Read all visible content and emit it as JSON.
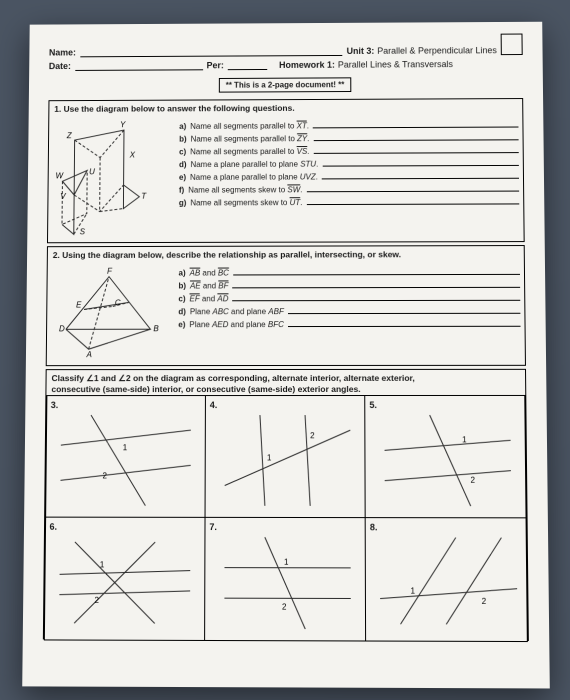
{
  "header": {
    "name_label": "Name:",
    "date_label": "Date:",
    "per_label": "Per:",
    "unit_label": "Unit 3:",
    "unit_title": "Parallel & Perpendicular Lines",
    "hw_label": "Homework 1:",
    "hw_title": "Parallel Lines & Transversals",
    "notice": "** This is a 2-page document! **"
  },
  "q1": {
    "head": "1. Use the diagram below to answer the following questions.",
    "items": [
      {
        "l": "a)",
        "t1": "Name all segments parallel to ",
        "seg": "XT",
        "t2": "."
      },
      {
        "l": "b)",
        "t1": "Name all segments parallel to ",
        "seg": "ZY",
        "t2": "."
      },
      {
        "l": "c)",
        "t1": "Name all segments parallel to ",
        "seg": "VS",
        "t2": "."
      },
      {
        "l": "d)",
        "t1": "Name a plane parallel to plane ",
        "seg": "",
        "plain": "STU",
        "t2": "."
      },
      {
        "l": "e)",
        "t1": "Name a plane parallel to plane ",
        "seg": "",
        "plain": "UVZ",
        "t2": "."
      },
      {
        "l": "f)",
        "t1": "Name all segments skew to ",
        "seg": "SW",
        "t2": "."
      },
      {
        "l": "g)",
        "t1": "Name all segments skew to ",
        "seg": "UT",
        "t2": "."
      }
    ],
    "labels": {
      "Y": "Y",
      "Z": "Z",
      "X": "X",
      "W": "W",
      "U": "U",
      "V": "V",
      "T": "T",
      "S": "S"
    }
  },
  "q2": {
    "head": "2. Using the diagram below, describe the relationship as parallel, intersecting, or skew.",
    "items": [
      {
        "l": "a)",
        "s1": "AB",
        "mid": " and ",
        "s2": "BC"
      },
      {
        "l": "b)",
        "s1": "AE",
        "mid": " and ",
        "s2": "BF"
      },
      {
        "l": "c)",
        "s1": "EF",
        "mid": " and ",
        "s2": "AD"
      },
      {
        "l": "d)",
        "p1": "ABC",
        "mid": " and plane ",
        "p2": "ABF",
        "pre": "Plane "
      },
      {
        "l": "e)",
        "p1": "AED",
        "mid": " and plane ",
        "p2": "BFC",
        "pre": "Plane "
      }
    ],
    "labels": {
      "F": "F",
      "E": "E",
      "C": "C",
      "D": "D",
      "B": "B",
      "A": "A"
    }
  },
  "q3": {
    "head1": "Classify ∠1 and ∠2 on the diagram as corresponding, alternate interior, alternate exterior,",
    "head2": "consecutive (same-side) interior, or consecutive (same-side) exterior angles.",
    "cells": [
      "3.",
      "4.",
      "5.",
      "6.",
      "7.",
      "8."
    ]
  },
  "style": {
    "stroke": "#2b2b2b",
    "dash": "3,2",
    "page_bg": "#f4f3ef",
    "body_bg": "#4a5462"
  }
}
